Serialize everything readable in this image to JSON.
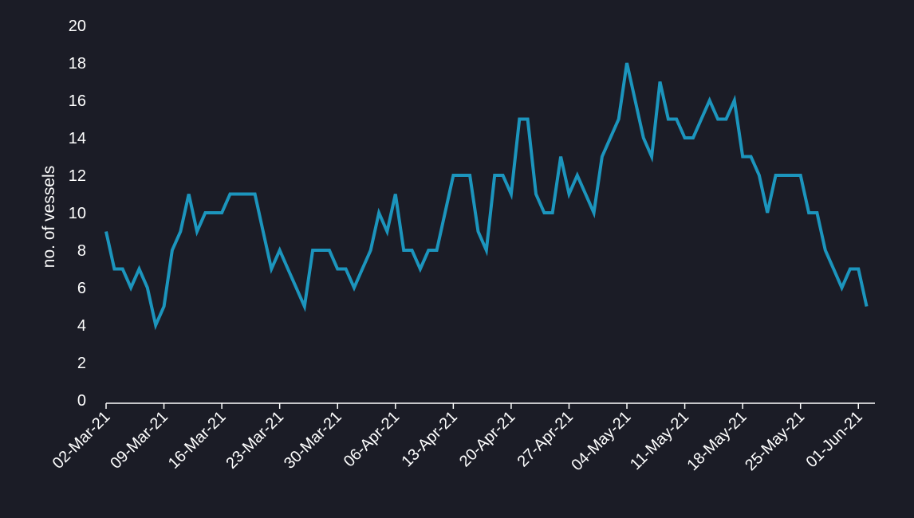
{
  "chart_data": {
    "type": "line",
    "title": "",
    "xlabel": "",
    "ylabel": "no. of vessels",
    "ylim": [
      0,
      20
    ],
    "yticks": [
      0,
      2,
      4,
      6,
      8,
      10,
      12,
      14,
      16,
      18,
      20
    ],
    "xlim": [
      "2021-03-02",
      "2021-06-03"
    ],
    "xtick_labels": [
      {
        "date": "2021-03-02",
        "label": "02-Mar-21"
      },
      {
        "date": "2021-03-09",
        "label": "09-Mar-21"
      },
      {
        "date": "2021-03-16",
        "label": "16-Mar-21"
      },
      {
        "date": "2021-03-23",
        "label": "23-Mar-21"
      },
      {
        "date": "2021-03-30",
        "label": "30-Mar-21"
      },
      {
        "date": "2021-04-06",
        "label": "06-Apr-21"
      },
      {
        "date": "2021-04-13",
        "label": "13-Apr-21"
      },
      {
        "date": "2021-04-20",
        "label": "20-Apr-21"
      },
      {
        "date": "2021-04-27",
        "label": "27-Apr-21"
      },
      {
        "date": "2021-05-04",
        "label": "04-May-21"
      },
      {
        "date": "2021-05-11",
        "label": "11-May-21"
      },
      {
        "date": "2021-05-18",
        "label": "18-May-21"
      },
      {
        "date": "2021-05-25",
        "label": "25-May-21"
      },
      {
        "date": "2021-06-01",
        "label": "01-Jun-21"
      }
    ],
    "grid": false,
    "series": [
      {
        "color": "#1c95bd",
        "start_date": "2021-03-02",
        "values": [
          9,
          7,
          7,
          6,
          7,
          6,
          4,
          5,
          8,
          9,
          11,
          9,
          10,
          10,
          10,
          11,
          11,
          11,
          11,
          9,
          7,
          8,
          7,
          6,
          5,
          8,
          8,
          8,
          7,
          7,
          6,
          7,
          8,
          10,
          9,
          11,
          8,
          8,
          7,
          8,
          8,
          10,
          12,
          12,
          12,
          9,
          8,
          12,
          12,
          11,
          15,
          15,
          11,
          10,
          10,
          13,
          11,
          12,
          11,
          10,
          13,
          14,
          15,
          18,
          16,
          14,
          13,
          17,
          15,
          15,
          14,
          14,
          15,
          16,
          15,
          15,
          16,
          13,
          13,
          12,
          10,
          12,
          12,
          12,
          12,
          10,
          10,
          8,
          7,
          6,
          7,
          7,
          5
        ]
      }
    ]
  }
}
